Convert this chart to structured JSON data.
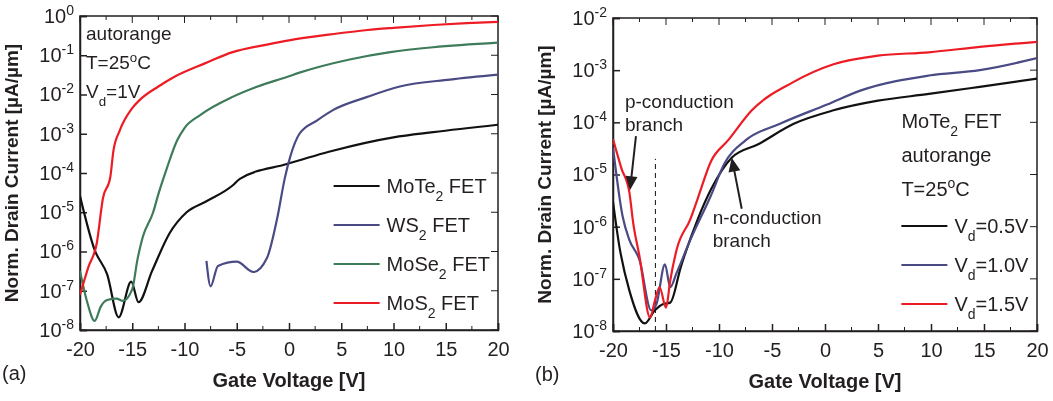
{
  "chart_data": [
    {
      "type": "line",
      "log": "y",
      "xlabel": "Gate Voltage [V]",
      "ylabel": "Norm. Drain Current [µA/µm]",
      "xlim": [
        -20,
        20
      ],
      "xticks": [
        -20,
        -15,
        -10,
        -5,
        0,
        5,
        10,
        15,
        20
      ],
      "ylim": [
        1e-08,
        1
      ],
      "yticks": [
        {
          "value": 1e-08,
          "label": "10$^{-8}$"
        },
        {
          "value": 1e-07,
          "label": "10$^{-7}$"
        },
        {
          "value": 1e-06,
          "label": "10$^{-6}$"
        },
        {
          "value": 1e-05,
          "label": "10$^{-5}$"
        },
        {
          "value": 0.0001,
          "label": "10$^{-4}$"
        },
        {
          "value": 0.001,
          "label": "10$^{-3}$"
        },
        {
          "value": 0.01,
          "label": "10$^{-2}$"
        },
        {
          "value": 0.1,
          "label": "10$^{-1}$"
        },
        {
          "value": 1,
          "label": "10$^{0}$"
        }
      ],
      "legend": "bottom right",
      "annotations": [
        "(a)",
        "autorange",
        "T=25$^{o}$C",
        "V$_{d}$=1V"
      ],
      "series": [
        {
          "name": "MoTe$_{2}$ FET",
          "color": "#111111",
          "x": [
            -20,
            -18.6,
            -17.4,
            -16.3,
            -15.1,
            -14.4,
            -13.1,
            -11.4,
            -9.8,
            -7.9,
            -5.4,
            -4.7,
            -0.2,
            4.2,
            10,
            13.8,
            20
          ],
          "values": [
            2.6e-05,
            1.1e-06,
            2.6e-07,
            2.1e-08,
            1.7e-07,
            5.1e-08,
            3.2e-07,
            3e-06,
            1e-05,
            1.9e-05,
            4.8e-05,
            7.1e-05,
            0.00017,
            0.00037,
            0.00081,
            0.0011,
            0.0017
          ]
        },
        {
          "name": "WS$_{2}$ FET",
          "color": "#4a4a85",
          "x": [
            -7.9,
            -7.5,
            -6.8,
            -5,
            -3.4,
            -2.1,
            -1.15,
            -0.4,
            0.1,
            1,
            2.7,
            4.2,
            7.5,
            10.6,
            15.4,
            20
          ],
          "values": [
            5.8e-07,
            1.3e-07,
            4.3e-07,
            5.5e-07,
            3e-07,
            6.9e-07,
            6.6e-06,
            7.4e-05,
            0.00025,
            0.001,
            0.0022,
            0.004,
            0.0087,
            0.016,
            0.024,
            0.032
          ]
        },
        {
          "name": "MoSe$_{2}$ FET",
          "color": "#3e7b5a",
          "x": [
            -20,
            -19.3,
            -18.6,
            -18,
            -17.4,
            -16.5,
            -15.9,
            -15,
            -14.5,
            -14,
            -13,
            -12.5,
            -11.7,
            -10.7,
            -10,
            -8.5,
            -5.4,
            -3,
            -0.2,
            1,
            5.8,
            9.7,
            13.8,
            20
          ],
          "values": [
            3.2e-07,
            5e-08,
            1.7e-08,
            4e-08,
            5.8e-08,
            6.3e-08,
            5.5e-08,
            1.1e-07,
            6.3e-07,
            2.3e-06,
            1e-05,
            2.9e-05,
            0.00013,
            0.00068,
            0.0014,
            0.003,
            0.0087,
            0.016,
            0.028,
            0.036,
            0.078,
            0.12,
            0.16,
            0.21
          ]
        },
        {
          "name": "MoS$_{2}$ FET",
          "color": "#ed1c24",
          "x": [
            -20,
            -19.2,
            -18.4,
            -17.8,
            -17.1,
            -16.8,
            -16.2,
            -15,
            -14.3,
            -12.5,
            -11,
            -8,
            -5.4,
            -2,
            0,
            4,
            7.5,
            10,
            13.8,
            17,
            20
          ],
          "values": [
            7.9e-08,
            4e-07,
            1.6e-06,
            2.3e-05,
            7.9e-05,
            0.00037,
            0.0012,
            0.0045,
            0.0072,
            0.016,
            0.028,
            0.063,
            0.12,
            0.19,
            0.24,
            0.34,
            0.44,
            0.5,
            0.59,
            0.66,
            0.71
          ]
        }
      ]
    },
    {
      "type": "line",
      "log": "y",
      "xlabel": "Gate Voltage [V]",
      "ylabel": "Norm. Drain Current [µA/µm]",
      "xlim": [
        -20,
        20
      ],
      "xticks": [
        -20,
        -15,
        -10,
        -5,
        0,
        5,
        10,
        15,
        20
      ],
      "ylim": [
        1e-08,
        0.01
      ],
      "yticks": [
        {
          "value": 1e-08,
          "label": "10$^{-8}$"
        },
        {
          "value": 1e-07,
          "label": "10$^{-7}$"
        },
        {
          "value": 1e-06,
          "label": "10$^{-6}$"
        },
        {
          "value": 1e-05,
          "label": "10$^{-5}$"
        },
        {
          "value": 0.0001,
          "label": "10$^{-4}$"
        },
        {
          "value": 0.001,
          "label": "10$^{-3}$"
        },
        {
          "value": 0.01,
          "label": "10$^{-2}$"
        }
      ],
      "legend": "bottom right",
      "ref_lines": [
        {
          "axis": "x",
          "value": -16,
          "color": "#111111",
          "line_style": "dashed"
        }
      ],
      "annotations": [
        "(b)",
        "MoTe$_{2}$ FET",
        "autorange",
        "T=25$^{o}$C",
        {
          "text": "p-conduction branch",
          "x": -18.4,
          "y": 5e-06
        },
        {
          "text": "n-conduction branch",
          "x": -8.8,
          "y": 2.1e-05
        }
      ],
      "series": [
        {
          "name": "V$_{d}$=0.5V",
          "color": "#111111",
          "x": [
            -20,
            -19.4,
            -18.46,
            -17,
            -16.05,
            -15.25,
            -14.6,
            -13.6,
            -12,
            -10.75,
            -8.8,
            -6.3,
            -3,
            0.8,
            5,
            9.8,
            14.6,
            20
          ],
          "values": [
            3e-06,
            4.2e-07,
            6e-08,
            1.4e-08,
            2.5e-08,
            3.3e-08,
            3.5e-08,
            1.7e-07,
            1.4e-06,
            5.2e-06,
            2.1e-05,
            3.8e-05,
            9.3e-05,
            0.00017,
            0.00026,
            0.00035,
            0.00048,
            0.00069
          ]
        },
        {
          "name": "V$_{d}$=1.0V",
          "color": "#4a4a85",
          "x": [
            -20,
            -19.1,
            -18.46,
            -17.5,
            -16.4,
            -15.9,
            -15.1,
            -14.6,
            -14,
            -12.7,
            -10.75,
            -9.5,
            -7.5,
            -4.3,
            0.2,
            3.4,
            9.8,
            14.6,
            20
          ],
          "values": [
            3.3e-05,
            1.6e-06,
            5.6e-07,
            2.3e-07,
            2.5e-08,
            3.3e-08,
            1.9e-07,
            6.9e-08,
            1.3e-07,
            5.6e-07,
            4e-06,
            1.6e-05,
            4.5e-05,
            9.3e-05,
            0.00022,
            0.00041,
            0.00079,
            0.001,
            0.0017
          ]
        },
        {
          "name": "V$_{d}$=1.5V",
          "color": "#ed1c24",
          "x": [
            -20,
            -19.2,
            -18.46,
            -18.1,
            -17.5,
            -16.5,
            -16.05,
            -15.6,
            -15,
            -14.6,
            -14,
            -12.7,
            -12,
            -10.75,
            -9.15,
            -6.9,
            -3,
            0.8,
            5,
            9.8,
            14.6,
            20
          ],
          "values": [
            4.8e-05,
            1.3e-05,
            4.6e-06,
            1.2e-06,
            2.7e-07,
            1.8e-08,
            3.8e-08,
            6.9e-08,
            2.8e-08,
            9.3e-08,
            3.6e-07,
            1.4e-06,
            3.5e-06,
            1.8e-05,
            4.5e-05,
            0.00017,
            0.00059,
            0.0013,
            0.0019,
            0.0022,
            0.0028,
            0.0035
          ]
        }
      ]
    }
  ]
}
